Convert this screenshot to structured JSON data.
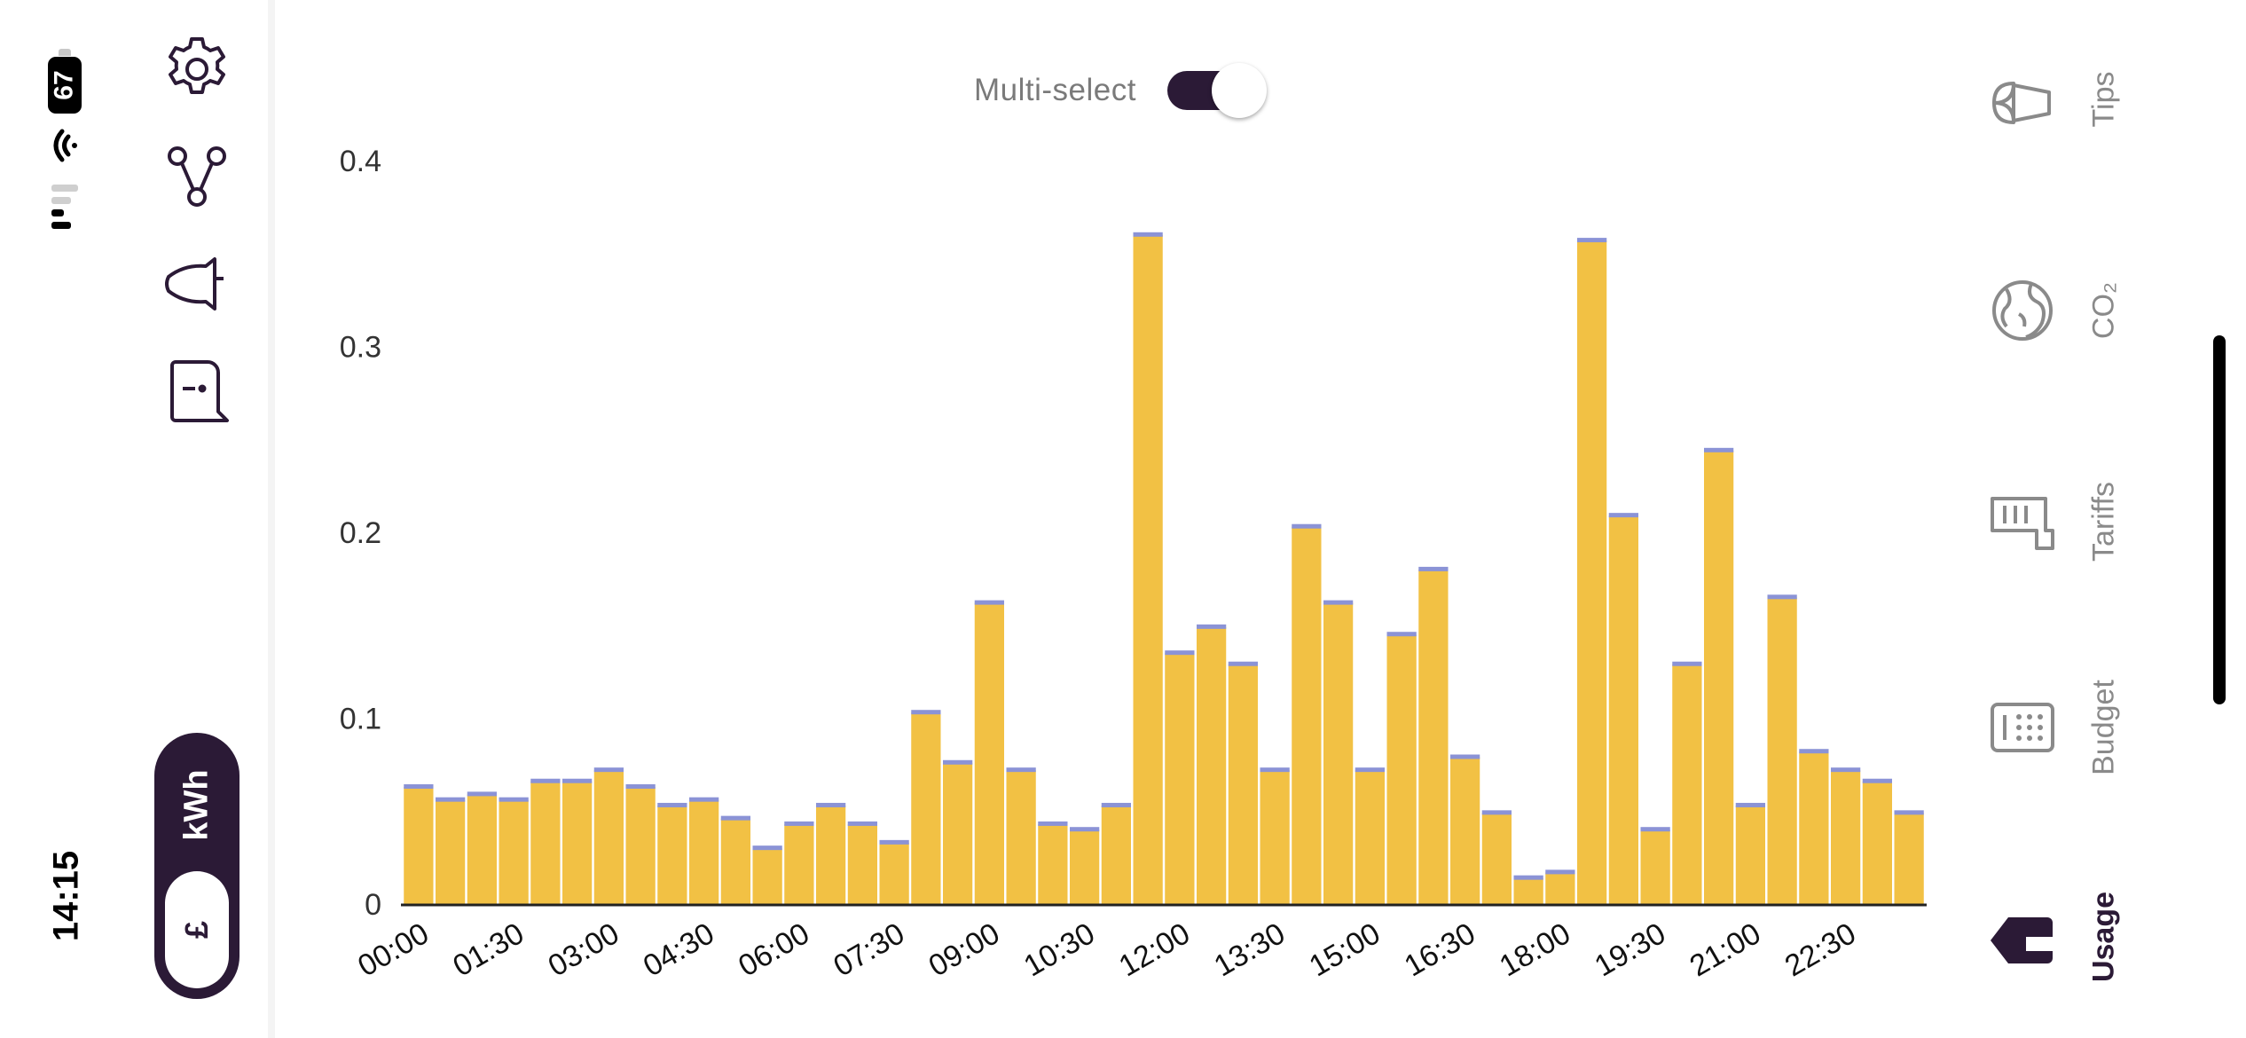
{
  "status_bar": {
    "time": "14:15",
    "battery": "67"
  },
  "toggle": {
    "label": "Multi-select",
    "on": true
  },
  "unit_toggle": {
    "selected": "kWh",
    "options": [
      "kWh",
      "£"
    ]
  },
  "left_nav": {
    "icons": [
      "settings-icon",
      "share-icon",
      "notification-bell-icon",
      "feedback-icon"
    ]
  },
  "right_nav": {
    "tabs": [
      {
        "label": "Tips",
        "icon": "plant-icon",
        "active": false
      },
      {
        "label": "CO₂",
        "icon": "globe-icon",
        "active": false
      },
      {
        "label": "Tariffs",
        "icon": "tariff-icon",
        "active": false
      },
      {
        "label": "Budget",
        "icon": "budget-icon",
        "active": false
      },
      {
        "label": "Usage",
        "icon": "usage-icon",
        "active": true
      }
    ]
  },
  "colors": {
    "bar": "#f2c144",
    "bar_top": "#8b93d6",
    "accent": "#2b1a36",
    "grid_text": "#333333"
  },
  "chart_data": {
    "type": "bar",
    "title": "",
    "xlabel": "",
    "ylabel": "",
    "ylim": [
      0,
      0.4
    ],
    "yticks": [
      0,
      0.1,
      0.2,
      0.3,
      0.4
    ],
    "ytick_labels": [
      "0",
      "0.1",
      "0.2",
      "0.3",
      "0.4"
    ],
    "xtick_labels": [
      "00:00",
      "01:30",
      "03:00",
      "04:30",
      "06:00",
      "07:30",
      "09:00",
      "10:30",
      "12:00",
      "13:30",
      "15:00",
      "16:30",
      "18:00",
      "19:30",
      "21:00",
      "22:30"
    ],
    "grid": false,
    "categories": [
      "00:00",
      "00:30",
      "01:00",
      "01:30",
      "02:00",
      "02:30",
      "03:00",
      "03:30",
      "04:00",
      "04:30",
      "05:00",
      "05:30",
      "06:00",
      "06:30",
      "07:00",
      "07:30",
      "08:00",
      "08:30",
      "09:00",
      "09:30",
      "10:00",
      "10:30",
      "11:00",
      "11:30",
      "12:00",
      "12:30",
      "13:00",
      "13:30",
      "14:00",
      "14:30",
      "15:00",
      "15:30",
      "16:00",
      "16:30",
      "17:00",
      "17:30",
      "18:00",
      "18:30",
      "19:00",
      "19:30",
      "20:00",
      "20:30",
      "21:00",
      "21:30",
      "22:00",
      "22:30",
      "23:00",
      "23:30"
    ],
    "values": [
      0.063,
      0.056,
      0.059,
      0.056,
      0.066,
      0.066,
      0.072,
      0.063,
      0.053,
      0.056,
      0.046,
      0.03,
      0.043,
      0.053,
      0.043,
      0.033,
      0.103,
      0.076,
      0.162,
      0.072,
      0.043,
      0.04,
      0.053,
      0.36,
      0.135,
      0.149,
      0.129,
      0.072,
      0.203,
      0.162,
      0.072,
      0.145,
      0.18,
      0.079,
      0.049,
      0.014,
      0.017,
      0.357,
      0.209,
      0.04,
      0.129,
      0.244,
      0.053,
      0.165,
      0.082,
      0.072,
      0.066,
      0.049
    ]
  }
}
